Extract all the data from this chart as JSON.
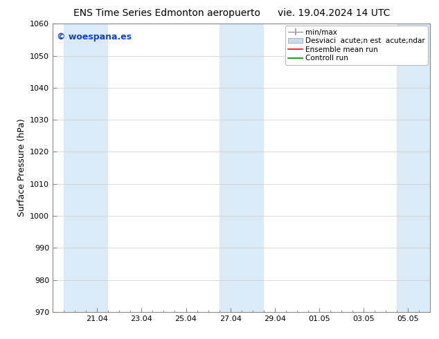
{
  "title_left": "ENS Time Series Edmonton aeropuerto",
  "title_right": "vie. 19.04.2024 14 UTC",
  "ylabel": "Surface Pressure (hPa)",
  "ylim": [
    970,
    1060
  ],
  "yticks": [
    970,
    980,
    990,
    1000,
    1010,
    1020,
    1030,
    1040,
    1050,
    1060
  ],
  "xtick_labels": [
    "21.04",
    "23.04",
    "25.04",
    "27.04",
    "29.04",
    "01.05",
    "03.05",
    "05.05"
  ],
  "xtick_positions": [
    2,
    4,
    6,
    8,
    10,
    12,
    14,
    16
  ],
  "x_min": 0,
  "x_max": 17,
  "shaded_bands": [
    {
      "x_start": 0.5,
      "x_end": 2.5,
      "color": "#daeaf7"
    },
    {
      "x_start": 7.5,
      "x_end": 9.5,
      "color": "#daeaf7"
    },
    {
      "x_start": 15.5,
      "x_end": 17.0,
      "color": "#daeaf7"
    }
  ],
  "watermark_text": "© woespana.es",
  "watermark_color": "#1144cc",
  "watermark_fontsize": 9,
  "bg_color": "#ffffff",
  "plot_bg_color": "#ffffff",
  "grid_color": "#cccccc",
  "title_fontsize": 10,
  "axis_label_fontsize": 9,
  "tick_fontsize": 8,
  "legend_fontsize": 7.5,
  "legend_label_minmax": "min/max",
  "legend_label_std": "Desviaci  acute;n est  acute;ndar",
  "legend_label_ens": "Ensemble mean run",
  "legend_label_ctrl": "Controll run",
  "legend_color_minmax": "#999999",
  "legend_color_std": "#c8ddef",
  "legend_color_ens": "red",
  "legend_color_ctrl": "green"
}
